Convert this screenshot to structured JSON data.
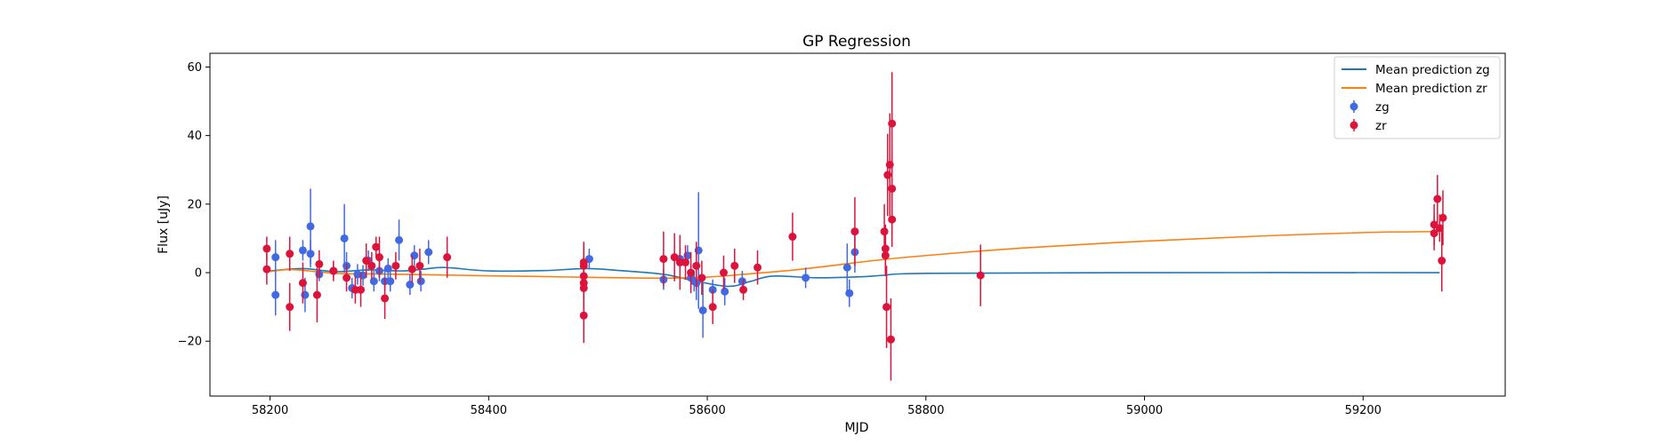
{
  "chart_data": {
    "type": "scatter",
    "title": "GP Regression",
    "xlabel": "MJD",
    "ylabel": "Flux [uJy]",
    "xlim": [
      58145,
      59330
    ],
    "ylim": [
      -36,
      64
    ],
    "xticks": [
      58200,
      58400,
      58600,
      58800,
      59000,
      59200
    ],
    "yticks": [
      -20,
      0,
      20,
      40,
      60
    ],
    "grid": false,
    "legend_position": "top-right",
    "legend": [
      "Mean prediction zg",
      "Mean prediction zr",
      "zg",
      "zr"
    ],
    "colors": {
      "mean_zg": "#1f77b4",
      "mean_zr": "#ff7f0e",
      "zg": "#4169e1",
      "zr": "#dc143c"
    },
    "lines": [
      {
        "name": "Mean prediction zg",
        "color_key": "mean_zg",
        "x": [
          58200,
          58230,
          58260,
          58290,
          58320,
          58340,
          58360,
          58400,
          58450,
          58490,
          58520,
          58560,
          58590,
          58620,
          58640,
          58660,
          58700,
          58740,
          58760,
          58800,
          59000,
          59270
        ],
        "y": [
          0.5,
          1.2,
          0.3,
          0.8,
          0.5,
          1.0,
          1.5,
          0.5,
          0.6,
          1.2,
          0.6,
          -0.5,
          -2.5,
          -4.0,
          -2.5,
          -1.0,
          -1.5,
          -1.2,
          -0.8,
          -0.2,
          0.0,
          0.0
        ]
      },
      {
        "name": "Mean prediction zr",
        "color_key": "mean_zr",
        "x": [
          58200,
          58220,
          58260,
          58300,
          58400,
          58500,
          58560,
          58600,
          58640,
          58680,
          58720,
          58760,
          58800,
          58850,
          58900,
          59000,
          59100,
          59200,
          59270
        ],
        "y": [
          0.3,
          0.9,
          -0.2,
          -0.4,
          -0.9,
          -1.4,
          -1.6,
          -1.3,
          -0.3,
          0.8,
          2.3,
          3.8,
          5.0,
          6.3,
          7.4,
          9.2,
          10.6,
          11.7,
          12.0
        ]
      }
    ],
    "series": [
      {
        "name": "zg",
        "color_key": "zg",
        "points": [
          [
            58205,
            4.5,
            5
          ],
          [
            58205,
            -6.5,
            6
          ],
          [
            58230,
            6.5,
            3
          ],
          [
            58232,
            -6.5,
            5
          ],
          [
            58237,
            13.5,
            11
          ],
          [
            58237,
            5.5,
            4
          ],
          [
            58245,
            -0.5,
            2
          ],
          [
            58258,
            0.5,
            2
          ],
          [
            58268,
            10,
            10
          ],
          [
            58270,
            2,
            4
          ],
          [
            58275,
            -4.5,
            3
          ],
          [
            58280,
            -0.5,
            3
          ],
          [
            58285,
            -0.8,
            3
          ],
          [
            58290,
            3.5,
            3
          ],
          [
            58295,
            -2.5,
            3
          ],
          [
            58300,
            0.5,
            3
          ],
          [
            58305,
            -2.5,
            3
          ],
          [
            58308,
            1.2,
            3
          ],
          [
            58310,
            -2.5,
            3
          ],
          [
            58318,
            9.5,
            6
          ],
          [
            58328,
            -3.5,
            3
          ],
          [
            58332,
            5,
            3
          ],
          [
            58338,
            -2.5,
            3
          ],
          [
            58345,
            6,
            3.5
          ],
          [
            58492,
            4,
            3
          ],
          [
            58560,
            -2,
            3
          ],
          [
            58575,
            4,
            3
          ],
          [
            58582,
            5,
            3
          ],
          [
            58585,
            -1.5,
            3
          ],
          [
            58588,
            -2.5,
            3
          ],
          [
            58590,
            -3,
            5
          ],
          [
            58592,
            6.5,
            17
          ],
          [
            58596,
            -11,
            8
          ],
          [
            58605,
            -5,
            3
          ],
          [
            58616,
            -5.5,
            4
          ],
          [
            58632,
            -2.5,
            3
          ],
          [
            58690,
            -1.5,
            3
          ],
          [
            58728,
            1.5,
            7
          ],
          [
            58730,
            -6,
            4
          ],
          [
            58735,
            6,
            6
          ]
        ]
      },
      {
        "name": "zr",
        "color_key": "zr",
        "points": [
          [
            58197,
            7,
            3.5
          ],
          [
            58197,
            1,
            4.5
          ],
          [
            58218,
            5.5,
            5
          ],
          [
            58218,
            -10,
            7
          ],
          [
            58230,
            -3,
            6
          ],
          [
            58243,
            -6.5,
            8
          ],
          [
            58245,
            2.5,
            4
          ],
          [
            58258,
            0.5,
            3
          ],
          [
            58270,
            -1.5,
            4
          ],
          [
            58278,
            -5,
            4
          ],
          [
            58283,
            -5,
            5
          ],
          [
            58288,
            3.5,
            5
          ],
          [
            58293,
            2,
            4
          ],
          [
            58297,
            7.5,
            3
          ],
          [
            58300,
            4.5,
            6
          ],
          [
            58305,
            -7.5,
            6
          ],
          [
            58315,
            2,
            4
          ],
          [
            58330,
            1,
            4
          ],
          [
            58337,
            2,
            5
          ],
          [
            58362,
            4.5,
            6
          ],
          [
            58487,
            3,
            6
          ],
          [
            58487,
            2,
            6
          ],
          [
            58487,
            -1,
            5
          ],
          [
            58487,
            -3,
            5
          ],
          [
            58487,
            -4.5,
            6
          ],
          [
            58487,
            -12.5,
            8
          ],
          [
            58560,
            4,
            8
          ],
          [
            58570,
            4.5,
            7
          ],
          [
            58575,
            3,
            8
          ],
          [
            58580,
            3,
            5
          ],
          [
            58585,
            0,
            6
          ],
          [
            58590,
            2,
            7
          ],
          [
            58595,
            -1.5,
            5
          ],
          [
            58605,
            -10,
            5
          ],
          [
            58615,
            0,
            5
          ],
          [
            58625,
            2,
            5
          ],
          [
            58633,
            -5,
            3
          ],
          [
            58646,
            1.5,
            5
          ],
          [
            58678,
            10.5,
            7
          ],
          [
            58735,
            12,
            10
          ],
          [
            58762,
            12,
            8
          ],
          [
            58763,
            7,
            7
          ],
          [
            58763,
            5,
            6
          ],
          [
            58764,
            -10,
            12
          ],
          [
            58765,
            28.5,
            12
          ],
          [
            58767,
            31.5,
            15
          ],
          [
            58768,
            -19.5,
            12
          ],
          [
            58769,
            43.5,
            15
          ],
          [
            58769,
            24.5,
            10
          ],
          [
            58769,
            15.5,
            8
          ],
          [
            58850,
            -0.8,
            9
          ],
          [
            59265,
            14,
            6
          ],
          [
            59265,
            11.5,
            5
          ],
          [
            59268,
            21.5,
            7
          ],
          [
            59270,
            13,
            4
          ],
          [
            59272,
            3.5,
            9
          ],
          [
            59273,
            16,
            8
          ]
        ]
      }
    ]
  }
}
